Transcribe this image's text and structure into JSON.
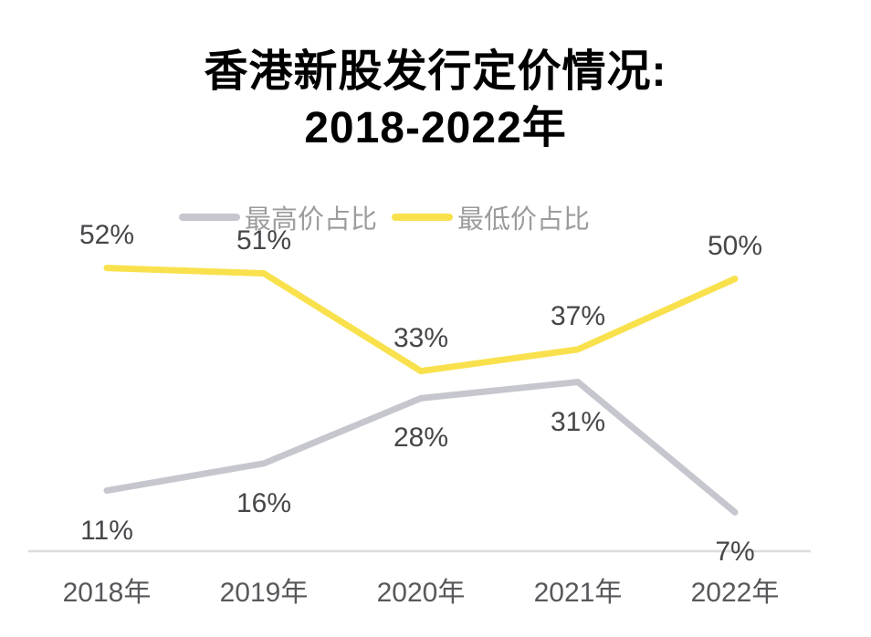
{
  "title": {
    "line1": "香港新股发行定价情况:",
    "line2": "2018-2022年"
  },
  "legend": [
    {
      "label": "最高价占比",
      "color": "#c6c6ce"
    },
    {
      "label": "最低价占比",
      "color": "#f9e14d"
    }
  ],
  "chart_data": {
    "type": "line",
    "title": "香港新股发行定价情况: 2018-2022年",
    "categories": [
      "2018年",
      "2019年",
      "2020年",
      "2021年",
      "2022年"
    ],
    "series": [
      {
        "name": "最高价占比",
        "color": "#c6c6ce",
        "values": [
          11,
          16,
          28,
          31,
          7
        ],
        "labels": [
          "11%",
          "16%",
          "28%",
          "31%",
          "7%"
        ]
      },
      {
        "name": "最低价占比",
        "color": "#f9e14d",
        "values": [
          52,
          51,
          33,
          37,
          50
        ],
        "labels": [
          "52%",
          "51%",
          "33%",
          "37%",
          "50%"
        ]
      }
    ],
    "ylim": [
      0,
      60
    ],
    "grid": false,
    "legend_position": "top",
    "axis_line_color": "#dcdcdc",
    "data_label_color": "#46464a",
    "x_label_color": "#58585c"
  }
}
